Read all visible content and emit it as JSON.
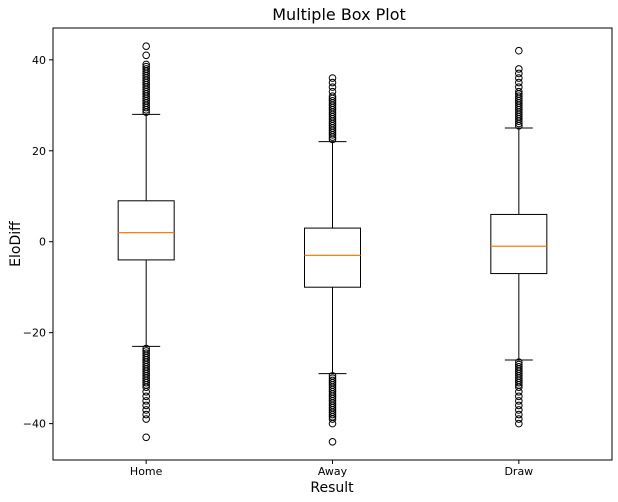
{
  "chart_data": {
    "type": "box",
    "title": "Multiple Box Plot",
    "xlabel": "Result",
    "ylabel": "EloDiff",
    "ylim": [
      -48,
      47
    ],
    "yticks": [
      -40,
      -20,
      0,
      20,
      40
    ],
    "yticklabels": [
      "−40",
      "−20",
      "0",
      "20",
      "40"
    ],
    "grid": false,
    "colors": {
      "box": "#000000",
      "median": "#ff7f0e",
      "flier": "#000000"
    },
    "categories": [
      "Home",
      "Away",
      "Draw"
    ],
    "boxes": [
      {
        "name": "Home",
        "whisker_low": -23,
        "q1": -4,
        "median": 2,
        "q3": 9,
        "whisker_high": 28,
        "fliers": [
          28.5,
          29,
          29.5,
          30,
          30.5,
          31,
          31.5,
          32,
          32.5,
          33,
          33.5,
          34,
          34.5,
          35,
          35.5,
          36,
          36.5,
          37,
          37.5,
          38,
          38.5,
          39,
          41,
          43,
          -23.5,
          -24,
          -24.5,
          -25,
          -25.5,
          -26,
          -26.5,
          -27,
          -27.5,
          -28,
          -28.5,
          -29,
          -29.5,
          -30,
          -30.5,
          -31,
          -31.5,
          -32,
          -33,
          -34,
          -35,
          -36,
          -37,
          -38,
          -39,
          -43
        ]
      },
      {
        "name": "Away",
        "whisker_low": -29,
        "q1": -10,
        "median": -3,
        "q3": 3,
        "whisker_high": 22,
        "fliers": [
          22.5,
          23,
          23.5,
          24,
          24.5,
          25,
          25.5,
          26,
          26.5,
          27,
          27.5,
          28,
          28.5,
          29,
          29.5,
          30,
          30.5,
          31,
          31.5,
          32,
          33,
          34,
          35,
          36,
          -29.5,
          -30,
          -30.5,
          -31,
          -31.5,
          -32,
          -32.5,
          -33,
          -33.5,
          -34,
          -34.5,
          -35,
          -35.5,
          -36,
          -36.5,
          -37,
          -37.5,
          -38,
          -38.5,
          -39,
          -40,
          -44
        ]
      },
      {
        "name": "Draw",
        "whisker_low": -26,
        "q1": -7,
        "median": -1,
        "q3": 6,
        "whisker_high": 25,
        "fliers": [
          25.5,
          26,
          26.5,
          27,
          27.5,
          28,
          28.5,
          29,
          29.5,
          30,
          30.5,
          31,
          31.5,
          32,
          32.5,
          33,
          34,
          35,
          36,
          37,
          38,
          42,
          -26.5,
          -27,
          -27.5,
          -28,
          -28.5,
          -29,
          -29.5,
          -30,
          -30.5,
          -31,
          -31.5,
          -32,
          -33,
          -34,
          -35,
          -36,
          -37,
          -38,
          -39,
          -40
        ]
      }
    ]
  }
}
